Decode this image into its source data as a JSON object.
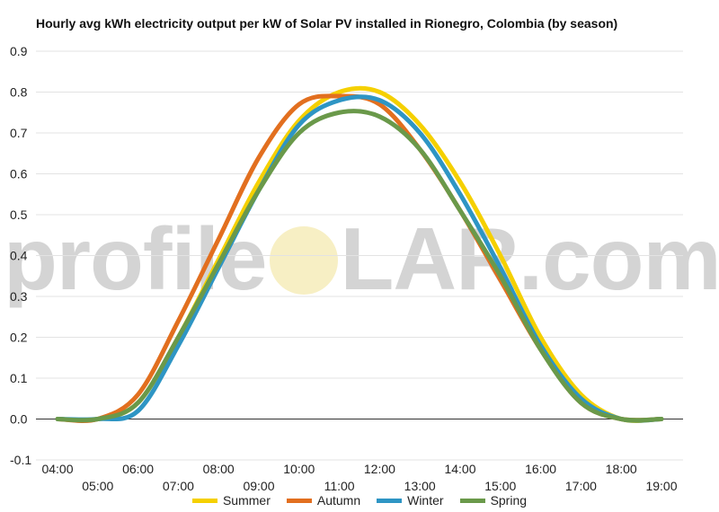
{
  "chart_data": {
    "type": "line",
    "title": "Hourly avg kWh electricity output per kW of Solar PV installed in Rionegro, Colombia (by season)",
    "xlabel": "",
    "ylabel": "",
    "ylim": [
      -0.1,
      0.9
    ],
    "yticks": [
      "0.9",
      "0.8",
      "0.7",
      "0.6",
      "0.5",
      "0.4",
      "0.3",
      "0.2",
      "0.1",
      "0.0",
      "-0.1"
    ],
    "categories": [
      "04:00",
      "05:00",
      "06:00",
      "07:00",
      "08:00",
      "09:00",
      "10:00",
      "11:00",
      "12:00",
      "13:00",
      "14:00",
      "15:00",
      "16:00",
      "17:00",
      "18:00",
      "19:00"
    ],
    "grid": true,
    "legend_position": "bottom",
    "series": [
      {
        "name": "Summer",
        "color": "#f5d000",
        "values": [
          0.0,
          0.0,
          0.04,
          0.2,
          0.39,
          0.58,
          0.73,
          0.8,
          0.8,
          0.72,
          0.58,
          0.4,
          0.2,
          0.06,
          0.0,
          0.0
        ]
      },
      {
        "name": "Autumn",
        "color": "#e26f1f",
        "values": [
          0.0,
          0.0,
          0.06,
          0.24,
          0.44,
          0.64,
          0.77,
          0.79,
          0.77,
          0.66,
          0.51,
          0.34,
          0.17,
          0.04,
          0.0,
          0.0
        ]
      },
      {
        "name": "Winter",
        "color": "#2e95c4",
        "values": [
          0.0,
          0.0,
          0.02,
          0.18,
          0.37,
          0.56,
          0.72,
          0.78,
          0.78,
          0.7,
          0.55,
          0.37,
          0.18,
          0.05,
          0.0,
          0.0
        ]
      },
      {
        "name": "Spring",
        "color": "#6a994a",
        "values": [
          0.0,
          0.0,
          0.04,
          0.2,
          0.38,
          0.56,
          0.7,
          0.75,
          0.74,
          0.66,
          0.51,
          0.35,
          0.17,
          0.04,
          0.0,
          0.0
        ]
      }
    ]
  },
  "watermark": {
    "left": "profile",
    "right": "LAR.com"
  }
}
